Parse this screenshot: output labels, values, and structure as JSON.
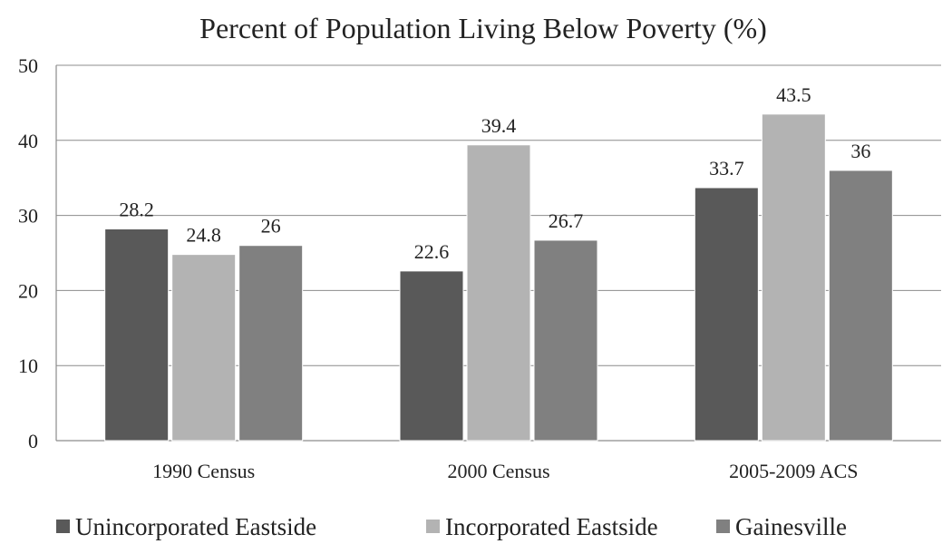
{
  "chart_data": {
    "type": "bar",
    "title": "Percent of Population Living Below Poverty (%)",
    "xlabel": "",
    "ylabel": "",
    "ylim": [
      0,
      50
    ],
    "yticks": [
      0,
      10,
      20,
      30,
      40,
      50
    ],
    "grid": true,
    "legend_position": "bottom",
    "categories": [
      "1990 Census",
      "2000 Census",
      "2005-2009 ACS"
    ],
    "series": [
      {
        "name": "Unincorporated Eastside",
        "color": "#595959",
        "values": [
          28.2,
          22.6,
          33.7
        ]
      },
      {
        "name": "Incorporated Eastside",
        "color": "#b3b3b3",
        "values": [
          24.8,
          39.4,
          43.5
        ]
      },
      {
        "name": "Gainesville",
        "color": "#808080",
        "values": [
          26,
          26.7,
          36
        ]
      }
    ]
  }
}
